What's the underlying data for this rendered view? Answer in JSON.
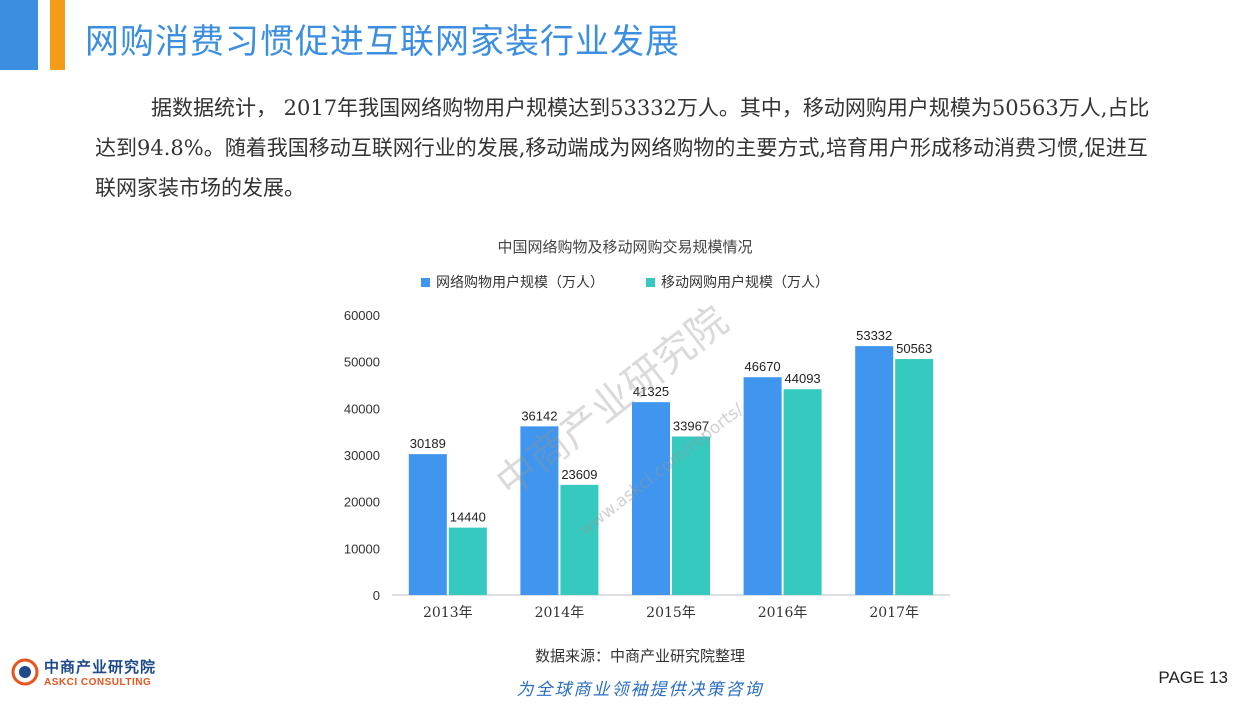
{
  "header": {
    "title": "网购消费习惯促进互联网家装行业发展",
    "blue_color": "#3c8fe0",
    "orange_color": "#f49b1a"
  },
  "body": {
    "paragraph": "据数据统计， 2017年我国网络购物用户规模达到53332万人。其中，移动网购用户规模为50563万人,占比达到94.8%。随着我国移动互联网行业的发展,移动端成为网络购物的主要方式,培育用户形成移动消费习惯,促进互联网家装市场的发展。"
  },
  "chart_data": {
    "type": "bar",
    "title": "中国网络购物及移动网购交易规模情况",
    "categories": [
      "2013年",
      "2014年",
      "2015年",
      "2016年",
      "2017年"
    ],
    "series": [
      {
        "name": "网络购物用户规模（万人）",
        "values": [
          30189,
          36142,
          41325,
          46670,
          53332
        ],
        "color": "#4096ee"
      },
      {
        "name": "移动网购用户规模（万人）",
        "values": [
          14440,
          23609,
          33967,
          44093,
          50563
        ],
        "color": "#36c9c0"
      }
    ],
    "ylim": [
      0,
      60000
    ],
    "yticks": [
      "0",
      "10000",
      "20000",
      "30000",
      "40000",
      "50000",
      "60000"
    ],
    "grid": false,
    "legend": "top"
  },
  "footer": {
    "source": "数据来源：中商产业研究院整理",
    "slogan": "为全球商业领袖提供决策咨询",
    "slogan_color": "#2a6fc2",
    "page_label": "PAGE 13",
    "logo_cn": "中商产业研究院",
    "logo_en": "ASKCI CONSULTING"
  },
  "watermark": {
    "text": "中商产业研究院",
    "url": "www.askci.com/reports/"
  }
}
